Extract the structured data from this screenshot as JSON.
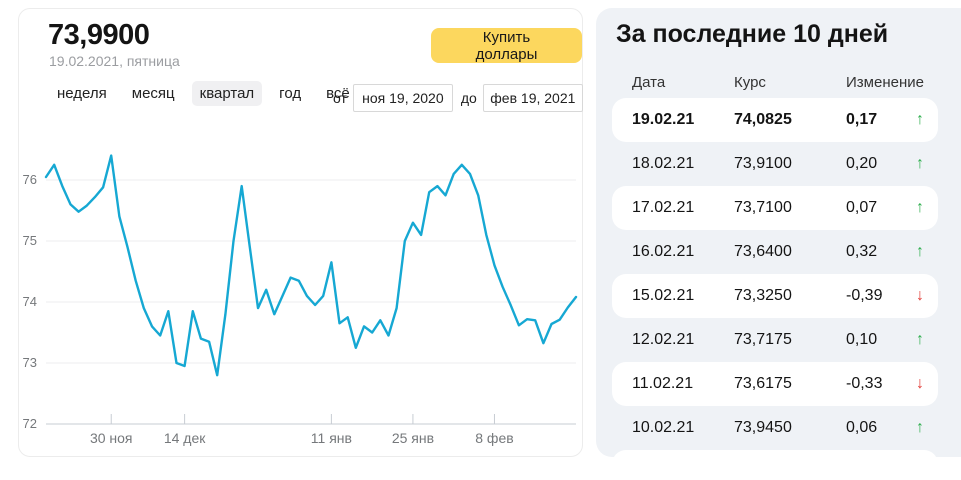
{
  "left_panel": {
    "rate": "73,9900",
    "date": "19.02.2021, пятница",
    "buy_button": "Купить доллары",
    "tabs": [
      {
        "label": "неделя",
        "selected": false
      },
      {
        "label": "месяц",
        "selected": false
      },
      {
        "label": "квартал",
        "selected": true
      },
      {
        "label": "год",
        "selected": false
      },
      {
        "label": "всё",
        "selected": false
      }
    ],
    "range": {
      "from_label": "от",
      "from_value": "ноя 19, 2020",
      "to_label": "до",
      "to_value": "фев 19, 2021"
    }
  },
  "chart_data": {
    "type": "line",
    "x_range": [
      "19 ноя 2020",
      "19 фев 2021"
    ],
    "y_ticks": [
      76,
      75,
      74,
      73,
      72
    ],
    "ylim": [
      71.95,
      76.65
    ],
    "grid": true,
    "x_ticks": [
      {
        "label": "30 ноя",
        "index": 8
      },
      {
        "label": "14 дек",
        "index": 17
      },
      {
        "label": "11 янв",
        "index": 35
      },
      {
        "label": "25 янв",
        "index": 45
      },
      {
        "label": "8 фев",
        "index": 55
      }
    ],
    "values": [
      76.05,
      76.25,
      75.9,
      75.6,
      75.48,
      75.58,
      75.72,
      75.88,
      76.4,
      75.4,
      74.9,
      74.35,
      73.9,
      73.6,
      73.45,
      73.85,
      73.0,
      72.95,
      73.85,
      73.4,
      73.35,
      72.8,
      73.8,
      75.0,
      75.9,
      74.9,
      73.9,
      74.2,
      73.8,
      74.1,
      74.4,
      74.35,
      74.1,
      73.95,
      74.1,
      74.65,
      73.65,
      73.75,
      73.25,
      73.6,
      73.5,
      73.7,
      73.45,
      73.9,
      75.0,
      75.3,
      75.1,
      75.8,
      75.9,
      75.75,
      76.1,
      76.25,
      76.1,
      75.75,
      75.1,
      74.6,
      74.25,
      73.945,
      73.6175,
      73.7175,
      73.7,
      73.325,
      73.64,
      73.71,
      73.91,
      74.0825
    ]
  },
  "right_panel": {
    "title": "За последние 10 дней",
    "columns": [
      "Дата",
      "Курс",
      "Изменение"
    ],
    "up_arrow": "↑",
    "down_arrow": "↓",
    "rows": [
      {
        "date": "19.02.21",
        "rate": "74,0825",
        "change": "0,17",
        "direction": "up",
        "highlight": true,
        "bold": true
      },
      {
        "date": "18.02.21",
        "rate": "73,9100",
        "change": "0,20",
        "direction": "up",
        "highlight": false,
        "bold": false
      },
      {
        "date": "17.02.21",
        "rate": "73,7100",
        "change": "0,07",
        "direction": "up",
        "highlight": true,
        "bold": false
      },
      {
        "date": "16.02.21",
        "rate": "73,6400",
        "change": "0,32",
        "direction": "up",
        "highlight": false,
        "bold": false
      },
      {
        "date": "15.02.21",
        "rate": "73,3250",
        "change": "-0,39",
        "direction": "down",
        "highlight": true,
        "bold": false
      },
      {
        "date": "12.02.21",
        "rate": "73,7175",
        "change": "0,10",
        "direction": "up",
        "highlight": false,
        "bold": false
      },
      {
        "date": "11.02.21",
        "rate": "73,6175",
        "change": "-0,33",
        "direction": "down",
        "highlight": true,
        "bold": false
      },
      {
        "date": "10.02.21",
        "rate": "73,9450",
        "change": "0,06",
        "direction": "up",
        "highlight": false,
        "bold": false
      }
    ]
  },
  "colors": {
    "accent_yellow": "#fcd75e",
    "line": "#16a8d3",
    "up_green": "#2eae4e",
    "down_red": "#e23b36",
    "panel_bg": "#eff2f6",
    "grid": "#ededef",
    "axis": "#c7ccd3",
    "muted_text": "#75787b"
  }
}
